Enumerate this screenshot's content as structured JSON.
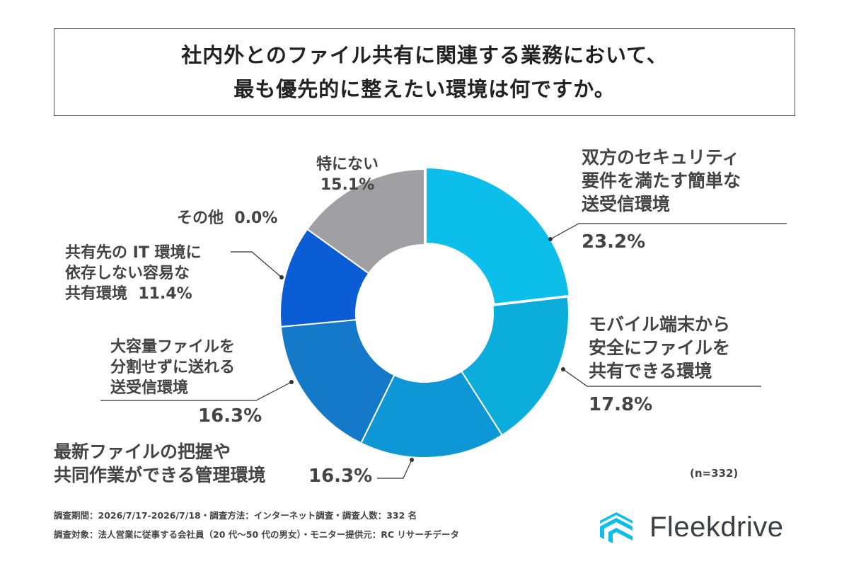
{
  "title": {
    "line1": "社内外とのファイル共有に関連する業務において、",
    "line2": "最も優先的に整えたい環境は何ですか。"
  },
  "chart_data": {
    "type": "pie",
    "series": [
      {
        "name": "双方のセキュリティ要件を満たす簡単な送受信環境",
        "value": 23.2,
        "color": "#0BBFEA"
      },
      {
        "name": "モバイル端末から安全にファイルを共有できる環境",
        "value": 17.8,
        "color": "#0BAEDB"
      },
      {
        "name": "最新ファイルの把握や共同作業ができる管理環境",
        "value": 16.3,
        "color": "#0D97D6"
      },
      {
        "name": "大容量ファイルを分割せずに送れる送受信環境",
        "value": 16.3,
        "color": "#1479C8"
      },
      {
        "name": "共有先のIT環境に依存しない容易な共有環境",
        "value": 11.4,
        "color": "#0B5DD6"
      },
      {
        "name": "その他",
        "value": 0.0,
        "color": "#888888"
      },
      {
        "name": "特にない",
        "value": 15.1,
        "color": "#A09FA3"
      }
    ]
  },
  "labels": {
    "s1": {
      "l1": "双方のセキュリティ",
      "l2": "要件を満たす簡単な",
      "l3": "送受信環境",
      "pct": "23.2%"
    },
    "s2": {
      "l1": "モバイル端末から",
      "l2": "安全にファイルを",
      "l3": "共有できる環境",
      "pct": "17.8%"
    },
    "s3": {
      "l1": "最新ファイルの把握や",
      "l2": "共同作業ができる管理環境",
      "pct": "16.3%"
    },
    "s4": {
      "l1": "大容量ファイルを",
      "l2": "分割せずに送れる",
      "l3": "送受信環境",
      "pct": "16.3%"
    },
    "s5": {
      "l1": "共有先の IT 環境に",
      "l2": "依存しない容易な",
      "l3": "共有環境",
      "pct": "11.4%"
    },
    "s6": {
      "name": "その他",
      "pct": "0.0%"
    },
    "s7": {
      "name": "特にない",
      "pct": "15.1%"
    }
  },
  "n_note": "(n=332)",
  "footnotes": {
    "line1": "調査期間：2026/7/17-2026/7/18・調査方法：インターネット調査・調査人数：332 名",
    "line2": "調査対象：法人営業に従事する会社員（20 代〜50 代の男女）・モニター提供元：RC リサーチデータ"
  },
  "logo": {
    "text": "Fleekdrive",
    "color": "#0BBFEA"
  }
}
